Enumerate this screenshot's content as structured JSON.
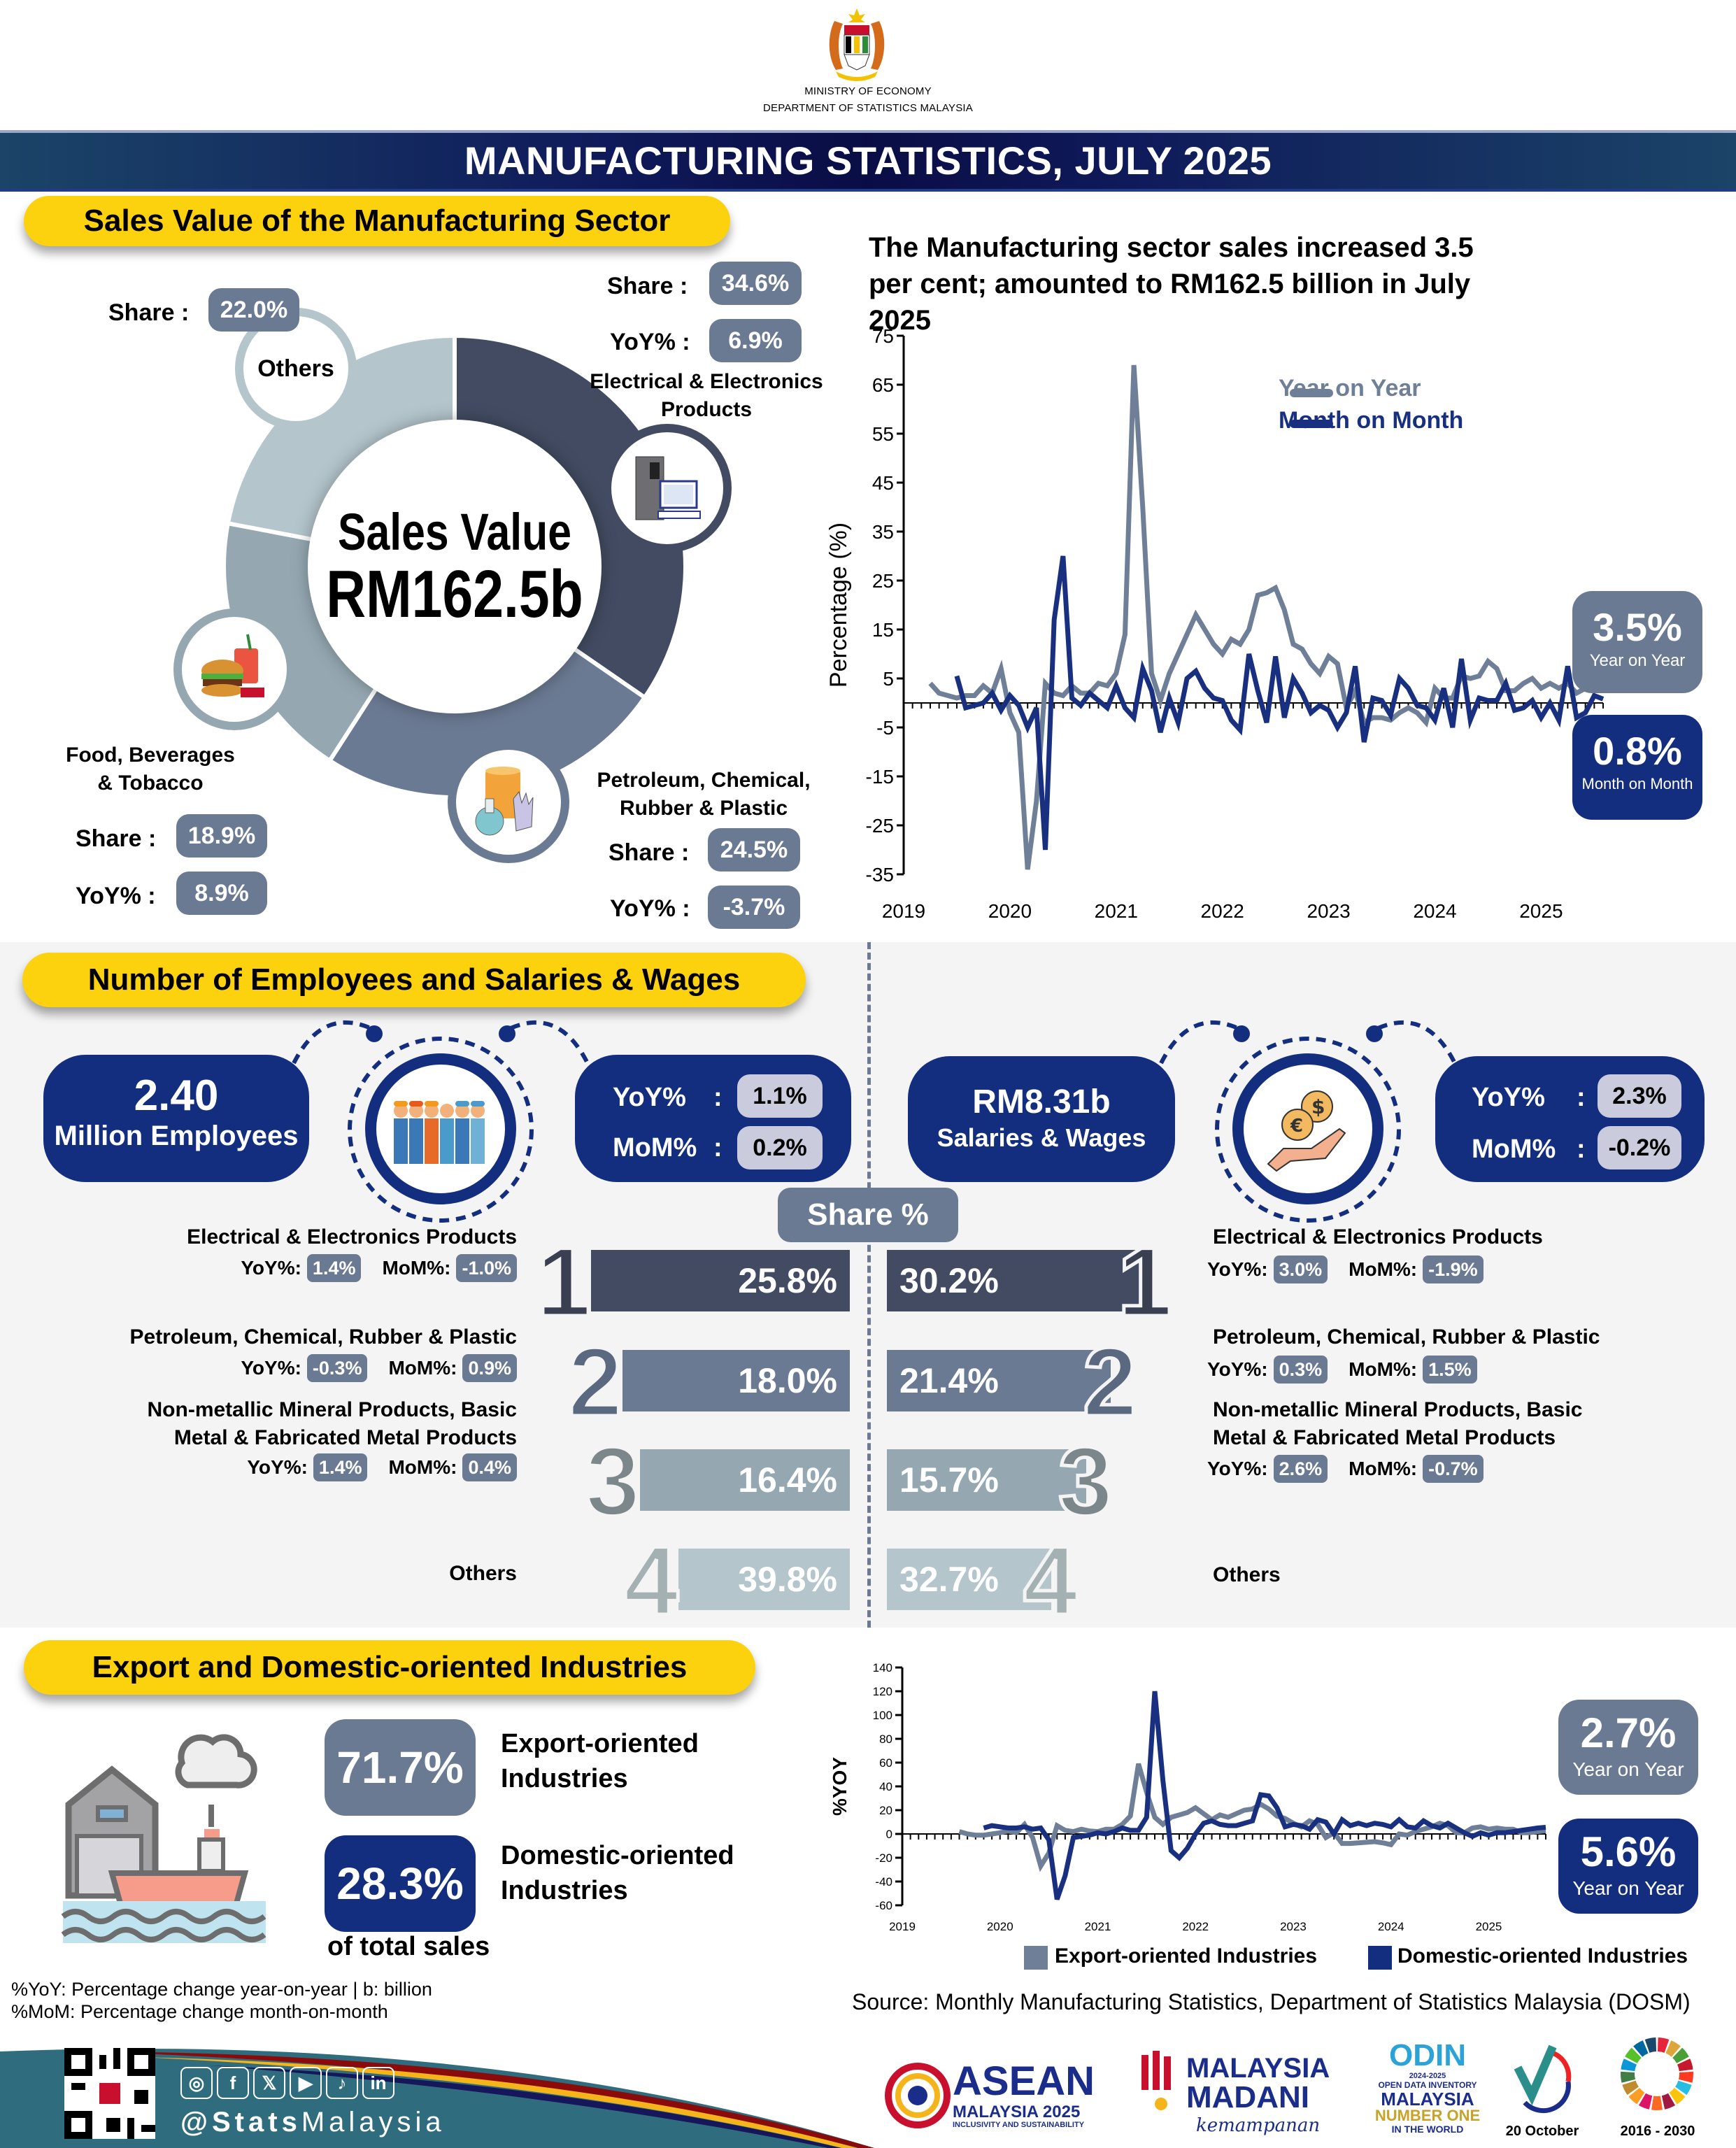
{
  "header": {
    "ministry": "MINISTRY OF ECONOMY",
    "department": "DEPARTMENT OF STATISTICS MALAYSIA",
    "title": "MANUFACTURING STATISTICS, JULY 2025"
  },
  "sales": {
    "section_title": "Sales Value of the Manufacturing Sector",
    "center_label": "Sales Value",
    "center_value": "RM162.5b",
    "share_label": "Share :",
    "yoy_label": "YoY% :",
    "segments": [
      {
        "name": "Electrical & Electronics Products",
        "share": "34.6%",
        "yoy": "6.9%",
        "share_value": 34.6,
        "color": "#424b61",
        "icon": "computer-fridge-icon"
      },
      {
        "name": "Petroleum, Chemical, Rubber & Plastic",
        "share": "24.5%",
        "yoy": "-3.7%",
        "share_value": 24.5,
        "color": "#6b7a93",
        "icon": "barrel-flask-gloves-icon"
      },
      {
        "name": "Food, Beverages & Tobacco",
        "share": "18.9%",
        "yoy": "8.9%",
        "share_value": 18.9,
        "color": "#95a8b2",
        "icon": "burger-drink-icon"
      },
      {
        "name": "Others",
        "share": "22.0%",
        "share_value": 22.0,
        "color": "#b4c5cc"
      }
    ]
  },
  "chart_data": [
    {
      "type": "line",
      "title": "The Manufacturing sector sales increased 3.5 per cent; amounted to RM162.5 billion in July 2025",
      "ylabel": "Percentage (%)",
      "xlabel": "",
      "ylim": [
        -35,
        75
      ],
      "yticks": [
        75,
        65,
        55,
        45,
        35,
        25,
        15,
        5,
        -5,
        -15,
        -25,
        -35
      ],
      "xticks": [
        "2019",
        "2020",
        "2021",
        "2022",
        "2023",
        "2024",
        "2025"
      ],
      "legend": "top-right",
      "x_start": "2019-01",
      "series": [
        {
          "name": "Year on Year",
          "color": "#6f7f97",
          "values": [
            4,
            2,
            1.5,
            1,
            1.5,
            1.5,
            3.5,
            2,
            7,
            -2,
            -6,
            -34,
            -20,
            4,
            2,
            1.5,
            3.5,
            2,
            2,
            4,
            3.5,
            6,
            14,
            69,
            40,
            6,
            0.5,
            6,
            10,
            14,
            18,
            15,
            12,
            10,
            13,
            12,
            15,
            22,
            22.5,
            23.5,
            19,
            12,
            11,
            8,
            6,
            9.5,
            8,
            -1,
            2.5,
            -4,
            -3,
            -3,
            -3.5,
            -2,
            -1,
            -2,
            -4,
            3,
            1,
            1,
            5.5,
            5,
            5.5,
            8.5,
            7,
            2.5,
            2.5,
            4,
            5,
            3,
            4,
            3,
            4,
            2,
            3,
            3,
            3.5
          ]
        },
        {
          "name": "Month on Month",
          "color": "#18307f",
          "values": [
            5.5,
            -1,
            -0.5,
            0,
            2,
            -1.5,
            1.5,
            -0.5,
            -5,
            -1,
            -30,
            17,
            30,
            1,
            -0.5,
            2,
            0.5,
            -1,
            3.5,
            -1,
            -3,
            7,
            2.5,
            -6,
            1,
            -4,
            5,
            6.5,
            3,
            1,
            0.5,
            -3.5,
            -5.5,
            10,
            2.5,
            -4,
            9.5,
            -3,
            5,
            2,
            -2,
            -0.5,
            -1.5,
            -5,
            -2,
            7.5,
            -8,
            1,
            0.5,
            -2.5,
            5,
            3,
            -0.5,
            -1,
            -3.5,
            3,
            -5,
            9,
            -3.5,
            1,
            0.5,
            0.5,
            4,
            -1.5,
            -1,
            0.5,
            -3,
            0,
            -3.5,
            7.5,
            -3,
            -2,
            1.5,
            0.8
          ]
        }
      ],
      "callouts": [
        {
          "value": "3.5%",
          "label": "Year on Year",
          "color": "#6b7a93"
        },
        {
          "value": "0.8%",
          "label": "Month on Month",
          "color": "#142e7f"
        }
      ]
    },
    {
      "type": "line",
      "title": "",
      "ylabel": "%YOY",
      "xlabel": "",
      "ylim": [
        -60,
        140
      ],
      "yticks": [
        140,
        120,
        100,
        80,
        60,
        40,
        20,
        0,
        -20,
        -40,
        -60
      ],
      "xticks": [
        "2019",
        "2020",
        "2021",
        "2022",
        "2023",
        "2024",
        "2025"
      ],
      "legend": "bottom",
      "x_start": "2019-01",
      "series": [
        {
          "name": "Export-oriented Industries",
          "color": "#6f7f97",
          "values": [
            2,
            0,
            -1,
            -1,
            0,
            1,
            2.5,
            1,
            8,
            -3,
            -27,
            -16,
            7,
            3,
            2,
            4,
            2.5,
            2,
            4,
            4,
            8,
            15,
            59,
            35,
            14,
            8,
            14,
            16,
            18,
            22,
            17,
            12,
            16,
            14,
            17,
            20,
            21,
            25,
            21,
            15,
            13,
            9,
            6,
            11,
            8,
            -3,
            1,
            -8,
            -8,
            -7.5,
            -7,
            -6.5,
            -7.5,
            -9,
            0,
            -1,
            2,
            4,
            6,
            9,
            7,
            1,
            1,
            5,
            6,
            4,
            5,
            4,
            4,
            1,
            1,
            2,
            2.7
          ]
        },
        {
          "name": "Domestic-oriented Industries",
          "color": "#18307f",
          "values": [
            5,
            7,
            6,
            5,
            5,
            6,
            4,
            5,
            -5,
            -55,
            -35,
            -3,
            -2,
            -1,
            1,
            0,
            2,
            5,
            3,
            3,
            14,
            120,
            45,
            -14,
            -20,
            -12,
            0,
            9,
            11,
            8,
            7,
            7,
            9,
            11,
            33,
            32,
            22,
            6,
            8,
            7,
            4,
            12,
            10,
            0,
            12,
            7,
            9,
            7,
            9,
            8,
            6,
            12,
            6,
            5,
            11,
            7,
            5,
            9,
            5,
            1,
            -2,
            1,
            -1,
            1,
            1,
            2,
            3,
            4,
            5,
            5.6
          ]
        }
      ],
      "callouts": [
        {
          "value": "2.7%",
          "label": "Year on Year",
          "color": "#6b7a93"
        },
        {
          "value": "5.6%",
          "label": "Year on Year",
          "color": "#142e7f"
        }
      ]
    }
  ],
  "employees": {
    "section_title": "Number of Employees and Salaries & Wages",
    "count": "2.40",
    "count_label": "Million Employees",
    "yoy_label": "YoY%",
    "mom_label": "MoM%",
    "colon": ":",
    "yoy": "1.1%",
    "mom": "0.2%"
  },
  "wages": {
    "value": "RM8.31b",
    "label": "Salaries & Wages",
    "yoy_label": "YoY%",
    "mom_label": "MoM%",
    "colon": ":",
    "yoy": "2.3%",
    "mom": "-0.2%"
  },
  "share_header": "Share %",
  "rank_labels": {
    "yoy": "YoY%:",
    "mom": "MoM%:"
  },
  "employee_ranks": [
    {
      "rank": "1",
      "name": "Electrical & Electronics Products",
      "share": "25.8%",
      "yoy": "1.4%",
      "mom": "-1.0%"
    },
    {
      "rank": "2",
      "name": "Petroleum, Chemical, Rubber & Plastic",
      "share": "18.0%",
      "yoy": "-0.3%",
      "mom": "0.9%"
    },
    {
      "rank": "3",
      "name_line1": "Non-metallic Mineral Products, Basic",
      "name_line2": "Metal & Fabricated Metal Products",
      "share": "16.4%",
      "yoy": "1.4%",
      "mom": "0.4%"
    },
    {
      "rank": "4",
      "name": "Others",
      "share": "39.8%"
    }
  ],
  "wage_ranks": [
    {
      "rank": "1",
      "name": "Electrical & Electronics Products",
      "share": "30.2%",
      "yoy": "3.0%",
      "mom": "-1.9%"
    },
    {
      "rank": "2",
      "name": "Petroleum, Chemical, Rubber & Plastic",
      "share": "21.4%",
      "yoy": "0.3%",
      "mom": "1.5%"
    },
    {
      "rank": "3",
      "name_line1": "Non-metallic Mineral Products, Basic",
      "name_line2": "Metal & Fabricated Metal Products",
      "share": "15.7%",
      "yoy": "2.6%",
      "mom": "-0.7%"
    },
    {
      "rank": "4",
      "name": "Others",
      "share": "32.7%"
    }
  ],
  "export": {
    "section_title": "Export and Domestic-oriented Industries",
    "export_value": "71.7%",
    "export_label_1": "Export-oriented",
    "export_label_2": "Industries",
    "domestic_value": "28.3%",
    "domestic_label_1": "Domestic-oriented",
    "domestic_label_2": "Industries",
    "of_total": "of total sales"
  },
  "notes": {
    "line1": "%YoY: Percentage change year-on-year | b: billion",
    "line2": "%MoM: Percentage change month-on-month",
    "source": "Source: Monthly Manufacturing Statistics, Department of Statistics Malaysia (DOSM)"
  },
  "footer": {
    "handle_bold": "@Stats",
    "handle_light": "Malaysia",
    "social": [
      "instagram-icon",
      "facebook-icon",
      "x-icon",
      "youtube-icon",
      "tiktok-icon",
      "linkedin-icon"
    ],
    "social_glyphs": [
      "◎",
      "f",
      "𝕏",
      "▶",
      "♪",
      "in"
    ],
    "logos": {
      "asean": {
        "main": "ASEAN",
        "sub": "MALAYSIA 2025",
        "tag": "INCLUSIVITY AND SUSTAINABILITY"
      },
      "madani": {
        "main1": "MALAYSIA",
        "main2": "MADANI",
        "tag": "kemampanan"
      },
      "odin": {
        "main": "ODIN",
        "years": "2024-2025",
        "sub1": "OPEN DATA INVENTORY",
        "sub2": "MALAYSIA",
        "sub3": "NUMBER ONE",
        "sub4": "IN THE WORLD"
      },
      "statday": {
        "caption": "20 October"
      },
      "sdg": {
        "caption": "2016 - 2030"
      }
    }
  }
}
